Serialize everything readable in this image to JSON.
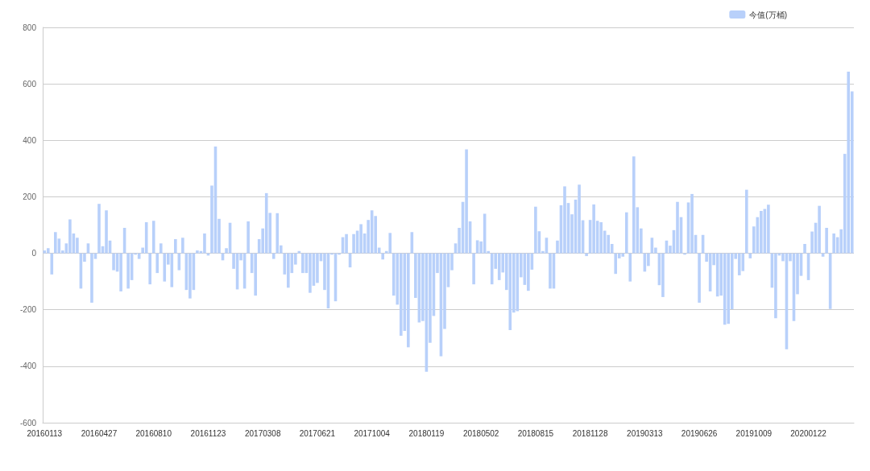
{
  "chart_data": {
    "type": "bar",
    "categories": [
      "20160113",
      null,
      null,
      null,
      null,
      null,
      null,
      null,
      null,
      null,
      null,
      null,
      null,
      null,
      null,
      "20160427",
      null,
      null,
      null,
      null,
      null,
      null,
      null,
      null,
      null,
      null,
      null,
      null,
      null,
      null,
      "20160810",
      null,
      null,
      null,
      null,
      null,
      null,
      null,
      null,
      null,
      null,
      null,
      null,
      null,
      null,
      "20161123",
      null,
      null,
      null,
      null,
      null,
      null,
      null,
      null,
      null,
      null,
      null,
      null,
      null,
      null,
      "20170308",
      null,
      null,
      null,
      null,
      null,
      null,
      null,
      null,
      null,
      null,
      null,
      null,
      null,
      null,
      "20170621",
      null,
      null,
      null,
      null,
      null,
      null,
      null,
      null,
      null,
      null,
      null,
      null,
      null,
      null,
      "20171004",
      null,
      null,
      null,
      null,
      null,
      null,
      null,
      null,
      null,
      null,
      null,
      null,
      null,
      null,
      "20180119",
      null,
      null,
      null,
      null,
      null,
      null,
      null,
      null,
      null,
      null,
      null,
      null,
      null,
      null,
      "20180502",
      null,
      null,
      null,
      null,
      null,
      null,
      null,
      null,
      null,
      null,
      null,
      null,
      null,
      null,
      "20180815",
      null,
      null,
      null,
      null,
      null,
      null,
      null,
      null,
      null,
      null,
      null,
      null,
      null,
      null,
      "20181128",
      null,
      null,
      null,
      null,
      null,
      null,
      null,
      null,
      null,
      null,
      null,
      null,
      null,
      null,
      "20190313",
      null,
      null,
      null,
      null,
      null,
      null,
      null,
      null,
      null,
      null,
      null,
      null,
      null,
      null,
      "20190626",
      null,
      null,
      null,
      null,
      null,
      null,
      null,
      null,
      null,
      null,
      null,
      null,
      null,
      null,
      "20191009",
      null,
      null,
      null,
      null,
      null,
      null,
      null,
      null,
      null,
      null,
      null,
      null,
      null,
      null,
      "20200122",
      null,
      null,
      null,
      null,
      null,
      null,
      null,
      null,
      null,
      null,
      null,
      null
    ],
    "series": [
      {
        "name": "今值(万桶)",
        "color": "#b8d0fa",
        "values": [
          10,
          18,
          -75,
          75,
          52,
          10,
          35,
          120,
          70,
          55,
          -125,
          -30,
          35,
          -175,
          -20,
          175,
          25,
          152,
          45,
          -60,
          -65,
          -135,
          90,
          -125,
          -95,
          -5,
          -20,
          20,
          110,
          -110,
          115,
          -70,
          35,
          -100,
          -40,
          -120,
          50,
          -60,
          55,
          -130,
          -160,
          -130,
          10,
          8,
          70,
          -8,
          240,
          378,
          122,
          -25,
          18,
          108,
          -55,
          -128,
          -25,
          -125,
          113,
          -70,
          -150,
          50,
          88,
          213,
          143,
          -20,
          142,
          28,
          -75,
          -122,
          -70,
          -40,
          8,
          -70,
          -70,
          -140,
          -115,
          -105,
          -28,
          -130,
          -195,
          -5,
          -170,
          -5,
          57,
          68,
          -50,
          68,
          80,
          103,
          70,
          118,
          152,
          132,
          20,
          -22,
          8,
          72,
          -150,
          -182,
          -292,
          -275,
          -333,
          75,
          -158,
          -245,
          -240,
          -420,
          -317,
          -222,
          -70,
          -365,
          -268,
          -120,
          -60,
          35,
          90,
          182,
          368,
          113,
          -110,
          46,
          42,
          140,
          8,
          -110,
          -55,
          -95,
          -68,
          -130,
          -272,
          -210,
          -205,
          -85,
          -112,
          -133,
          -58,
          165,
          78,
          8,
          55,
          -125,
          -125,
          45,
          170,
          237,
          178,
          138,
          190,
          243,
          117,
          -10,
          118,
          173,
          115,
          110,
          80,
          65,
          33,
          -73,
          -18,
          -12,
          145,
          -100,
          343,
          163,
          88,
          -65,
          -45,
          55,
          20,
          -113,
          -155,
          45,
          27,
          82,
          182,
          128,
          -5,
          180,
          210,
          65,
          -175,
          65,
          -30,
          -135,
          -42,
          -153,
          -150,
          -253,
          -250,
          -198,
          -20,
          -78,
          -63,
          225,
          -18,
          95,
          128,
          150,
          157,
          172,
          -122,
          -230,
          -8,
          -28,
          -340,
          -28,
          -240,
          -145,
          -80,
          33,
          -95,
          77,
          108,
          168,
          -12,
          90,
          -197,
          70,
          57,
          85,
          352,
          643,
          573
        ]
      }
    ],
    "ylim": [
      -600,
      800
    ],
    "yticks": [
      -600,
      -400,
      -200,
      0,
      200,
      400,
      600,
      800
    ],
    "grid": "y",
    "legend": "top right"
  }
}
